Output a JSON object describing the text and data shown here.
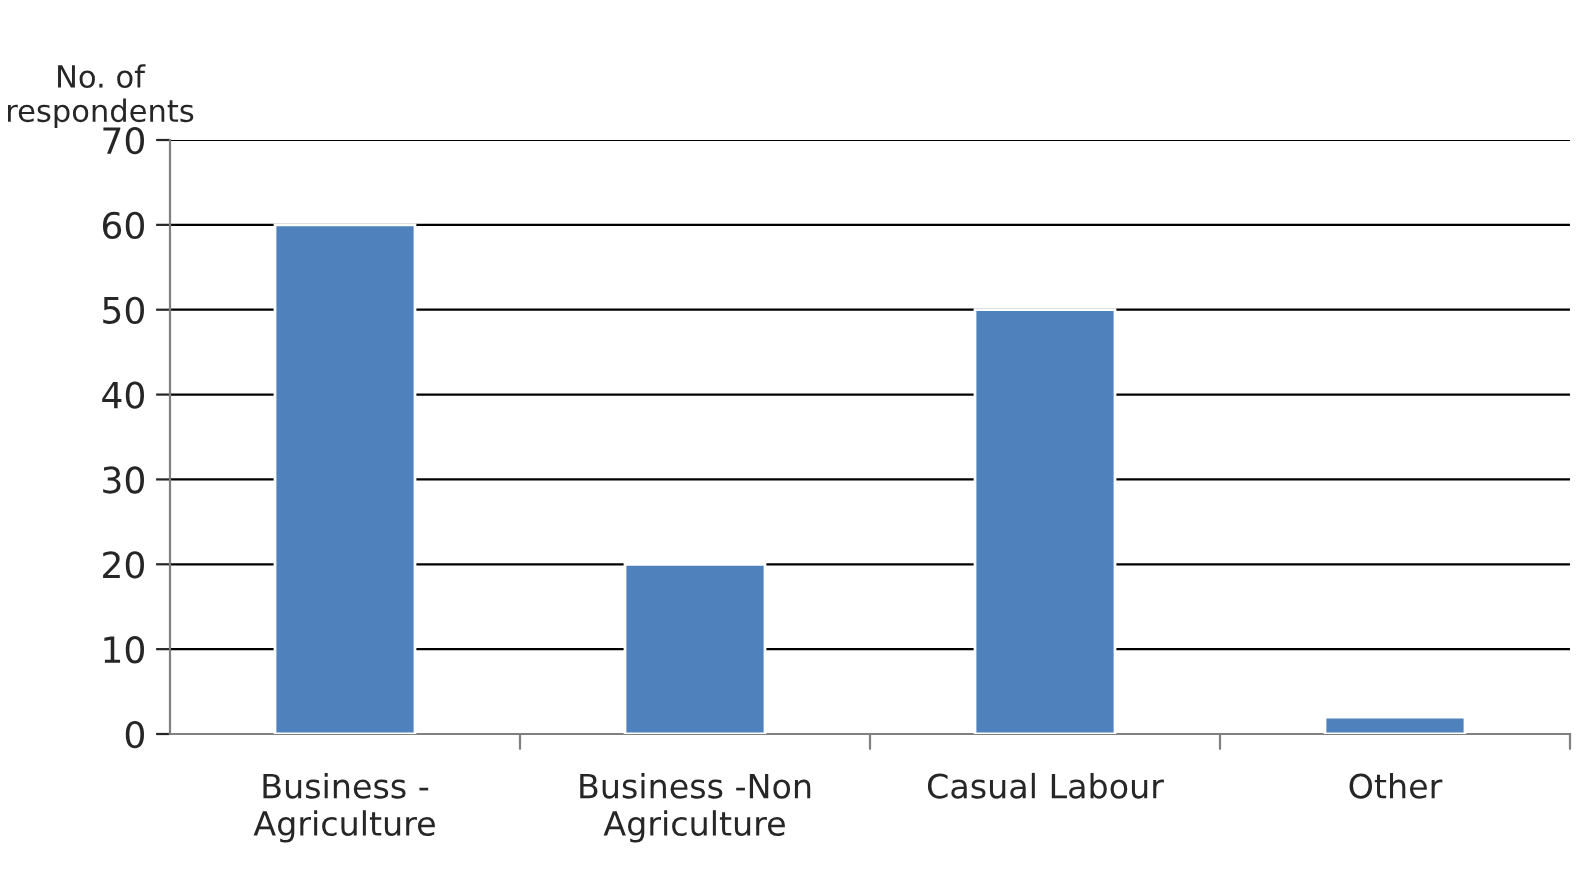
{
  "chart_data": {
    "type": "bar",
    "ylabel": "No. of\nrespondents",
    "categories": [
      "Business -\nAgriculture",
      "Business -Non\nAgriculture",
      "Casual Labour",
      "Other"
    ],
    "values": [
      60,
      20,
      50,
      2
    ],
    "color": "#4f81bd",
    "ylim": [
      0,
      70
    ],
    "yticks": [
      0,
      10,
      20,
      30,
      40,
      50,
      60,
      70
    ],
    "grid": "y",
    "legend": false
  }
}
